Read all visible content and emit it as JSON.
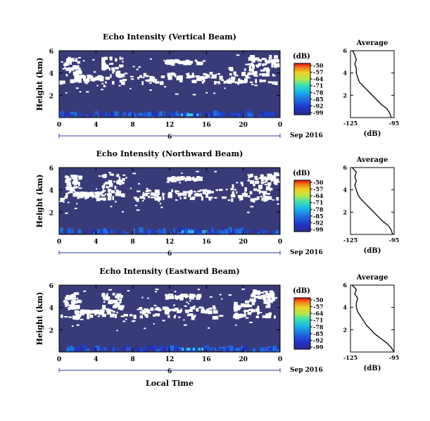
{
  "chart_data": [
    {
      "type": "heatmap",
      "title": "Echo Intensity (Vertical Beam)",
      "ylabel": "Height (km)",
      "y_ticks": [
        "6",
        "4",
        "2"
      ],
      "x_ticks": [
        "0",
        "4",
        "8",
        "12",
        "16",
        "20",
        "0"
      ],
      "xlim_hours": [
        0,
        24
      ],
      "ylim_km": [
        0,
        6
      ],
      "day_label": "6",
      "date_label": "Sep 2016",
      "colorbar": {
        "unit": "(dB)",
        "ticks": [
          "-50",
          "-57",
          "-64",
          "-71",
          "-78",
          "-85",
          "-92",
          "-99"
        ]
      },
      "profile": {
        "title": "Average",
        "xlabel": "(dB)",
        "x_ticks": [
          "-125",
          "-95"
        ],
        "y_ticks": [
          "6",
          "4",
          "2"
        ],
        "xlim": [
          -125,
          -95
        ],
        "ylim": [
          0,
          6
        ],
        "x": [
          -97,
          -98,
          -100,
          -104,
          -107,
          -110,
          -113,
          -116,
          -119,
          -120,
          -121,
          -121,
          -122,
          -121,
          -122,
          -123,
          -124
        ],
        "y": [
          0,
          0.4,
          0.8,
          1.2,
          1.6,
          2.0,
          2.4,
          2.8,
          3.2,
          3.6,
          4.0,
          4.4,
          4.8,
          5.2,
          5.6,
          5.9,
          6.0
        ]
      }
    },
    {
      "type": "heatmap",
      "title": "Echo Intensity (Northward Beam)",
      "ylabel": "Height (km)",
      "y_ticks": [
        "6",
        "4",
        "2"
      ],
      "x_ticks": [
        "0",
        "4",
        "8",
        "12",
        "16",
        "20",
        "0"
      ],
      "xlim_hours": [
        0,
        24
      ],
      "ylim_km": [
        0,
        6
      ],
      "day_label": "6",
      "date_label": "Sep 2016",
      "colorbar": {
        "unit": "(dB)",
        "ticks": [
          "-50",
          "-57",
          "-64",
          "-71",
          "-78",
          "-85",
          "-92",
          "-99"
        ]
      },
      "profile": {
        "title": "Average",
        "xlabel": "(dB)",
        "x_ticks": [
          "-125",
          "-95"
        ],
        "y_ticks": [
          "6",
          "4",
          "2"
        ],
        "xlim": [
          -125,
          -95
        ],
        "ylim": [
          0,
          6
        ],
        "x": [
          -96,
          -97,
          -99,
          -103,
          -106,
          -109,
          -112,
          -115,
          -118,
          -120,
          -121,
          -122,
          -121,
          -122,
          -121,
          -123,
          -124
        ],
        "y": [
          0,
          0.4,
          0.8,
          1.2,
          1.6,
          2.0,
          2.4,
          2.8,
          3.2,
          3.6,
          4.0,
          4.4,
          4.8,
          5.2,
          5.6,
          5.9,
          6.0
        ]
      }
    },
    {
      "type": "heatmap",
      "title": "Echo Intensity (Eastward Beam)",
      "ylabel": "Height (km)",
      "y_ticks": [
        "6",
        "4",
        "2"
      ],
      "x_ticks": [
        "0",
        "4",
        "8",
        "12",
        "16",
        "20",
        "0"
      ],
      "xlim_hours": [
        0,
        24
      ],
      "ylim_km": [
        0,
        6
      ],
      "day_label": "6",
      "date_label": "Sep 2016",
      "xlabel": "Local Time",
      "colorbar": {
        "unit": "(dB)",
        "ticks": [
          "-50",
          "-57",
          "-64",
          "-71",
          "-78",
          "-85",
          "-92",
          "-99"
        ]
      },
      "profile": {
        "title": "Average",
        "xlabel": "(dB)",
        "x_ticks": [
          "-125",
          "-95"
        ],
        "y_ticks": [
          "6",
          "4",
          "2"
        ],
        "xlim": [
          -125,
          -95
        ],
        "ylim": [
          0,
          6
        ],
        "x": [
          -95,
          -97,
          -100,
          -104,
          -108,
          -111,
          -114,
          -116,
          -118,
          -120,
          -121,
          -121,
          -120,
          -122,
          -121,
          -123,
          -124
        ],
        "y": [
          0,
          0.4,
          0.8,
          1.2,
          1.6,
          2.0,
          2.4,
          2.8,
          3.2,
          3.6,
          4.0,
          4.4,
          4.8,
          5.2,
          5.6,
          5.9,
          6.0
        ]
      }
    }
  ]
}
